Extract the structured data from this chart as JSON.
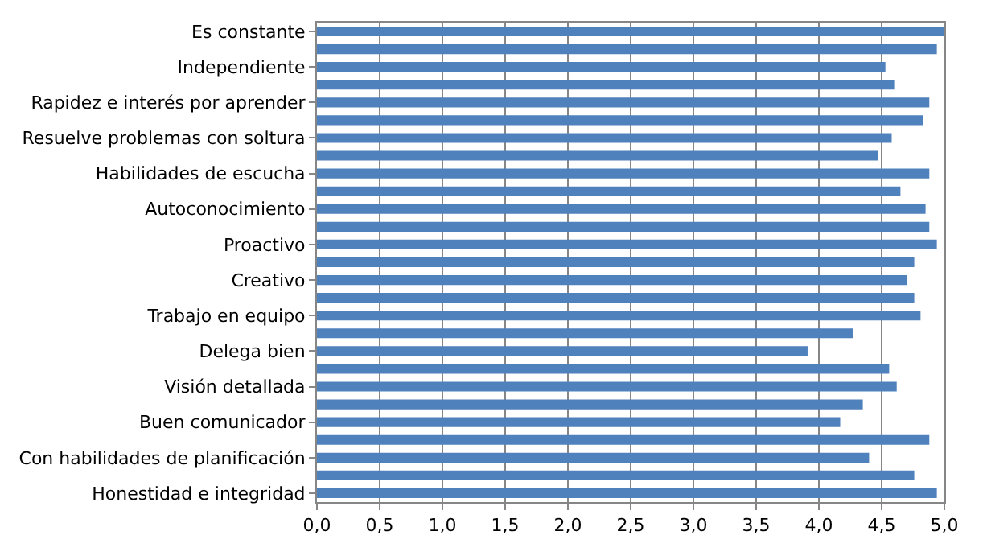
{
  "chart_data": {
    "type": "bar",
    "orientation": "horizontal",
    "categories": [
      "Es constante",
      null,
      "Independiente",
      null,
      "Rapidez e interés por aprender",
      null,
      "Resuelve problemas con soltura",
      null,
      "Habilidades de escucha",
      null,
      "Autoconocimiento",
      null,
      "Proactivo",
      null,
      "Creativo",
      null,
      "Trabajo en equipo",
      null,
      "Delega bien",
      null,
      "Visión detallada",
      null,
      "Buen comunicador",
      null,
      "Con habilidades de planificación",
      null,
      "Honestidad e integridad"
    ],
    "values": [
      5.0,
      4.94,
      4.53,
      4.6,
      4.88,
      4.83,
      4.58,
      4.47,
      4.88,
      4.65,
      4.85,
      4.88,
      4.94,
      4.76,
      4.7,
      4.76,
      4.81,
      4.27,
      3.91,
      4.56,
      4.62,
      4.35,
      4.17,
      4.88,
      4.4,
      4.76,
      4.94
    ],
    "color": "#4f81bd",
    "xlim": [
      0,
      5
    ],
    "xticks": [
      {
        "value": 0,
        "label": "0,0"
      },
      {
        "value": 0.5,
        "label": "0,5"
      },
      {
        "value": 1,
        "label": "1,0"
      },
      {
        "value": 1.5,
        "label": "1,5"
      },
      {
        "value": 2,
        "label": "2,0"
      },
      {
        "value": 2.5,
        "label": "2,5"
      },
      {
        "value": 3,
        "label": "3,0"
      },
      {
        "value": 3.5,
        "label": "3,5"
      },
      {
        "value": 4,
        "label": "4,0"
      },
      {
        "value": 4.5,
        "label": "4,5"
      },
      {
        "value": 5,
        "label": "5,0"
      }
    ],
    "grid": "x"
  }
}
